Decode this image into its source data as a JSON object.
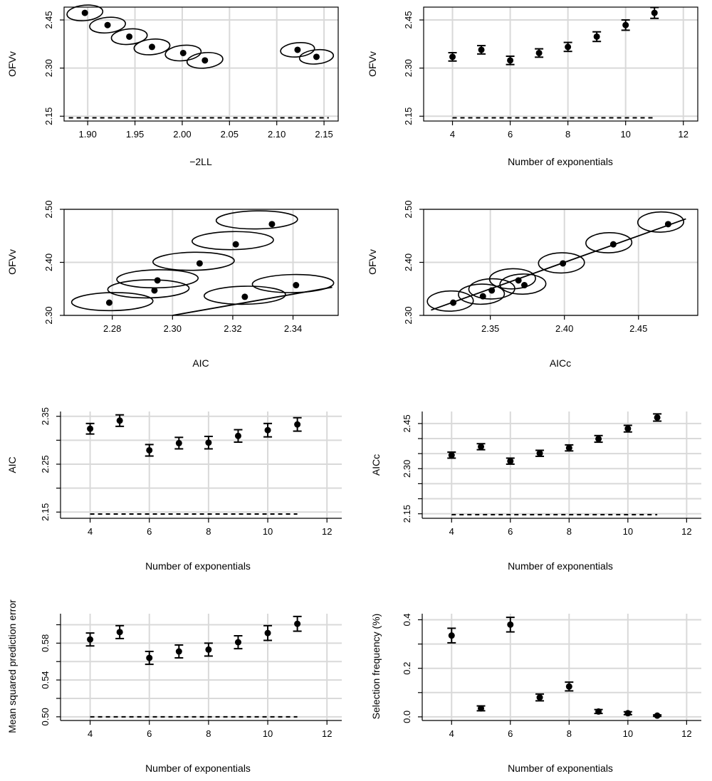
{
  "chart_data": [
    {
      "id": "p1",
      "type": "scatter",
      "title": "",
      "xlabel": "−2LL",
      "ylabel": "OFVv",
      "xlim": [
        1.875,
        2.165
      ],
      "ylim": [
        2.135,
        2.49
      ],
      "xticks": [
        1.9,
        1.95,
        2.0,
        2.05,
        2.1,
        2.15
      ],
      "xtick_labels": [
        "1.90",
        "1.95",
        "2.00",
        "2.05",
        "2.10",
        "2.15"
      ],
      "yticks": [
        2.15,
        2.3,
        2.45
      ],
      "ytick_labels": [
        "2.15",
        "2.30",
        "2.45"
      ],
      "grid": true,
      "points": [
        {
          "x": 1.897,
          "y": 2.472
        },
        {
          "x": 1.921,
          "y": 2.434
        },
        {
          "x": 1.944,
          "y": 2.398
        },
        {
          "x": 1.968,
          "y": 2.366
        },
        {
          "x": 2.001,
          "y": 2.347
        },
        {
          "x": 2.024,
          "y": 2.324
        },
        {
          "x": 2.122,
          "y": 2.357
        },
        {
          "x": 2.142,
          "y": 2.335
        }
      ],
      "ellipses": [
        {
          "x": 1.897,
          "y": 2.472,
          "rx": 0.019,
          "ry": 0.024,
          "angle": 0.25
        },
        {
          "x": 1.921,
          "y": 2.434,
          "rx": 0.019,
          "ry": 0.024,
          "angle": 0.25
        },
        {
          "x": 1.944,
          "y": 2.398,
          "rx": 0.019,
          "ry": 0.024,
          "angle": 0.25
        },
        {
          "x": 1.968,
          "y": 2.366,
          "rx": 0.019,
          "ry": 0.024,
          "angle": 0.25
        },
        {
          "x": 2.001,
          "y": 2.347,
          "rx": 0.019,
          "ry": 0.024,
          "angle": 0.25
        },
        {
          "x": 2.024,
          "y": 2.324,
          "rx": 0.019,
          "ry": 0.024,
          "angle": 0.25
        },
        {
          "x": 2.122,
          "y": 2.357,
          "rx": 0.018,
          "ry": 0.022,
          "angle": 0.25
        },
        {
          "x": 2.142,
          "y": 2.335,
          "rx": 0.018,
          "ry": 0.022,
          "angle": 0.25
        }
      ],
      "dashed_segment": {
        "x": [
          1.88,
          2.155
        ],
        "y": 2.145
      }
    },
    {
      "id": "p2",
      "type": "scatter",
      "title": "",
      "xlabel": "Number of exponentials",
      "ylabel": "OFVv",
      "xlim": [
        3,
        12.5
      ],
      "ylim": [
        2.135,
        2.49
      ],
      "xticks": [
        4,
        6,
        8,
        10,
        12
      ],
      "xtick_labels": [
        "4",
        "6",
        "8",
        "10",
        "12"
      ],
      "yticks": [
        2.15,
        2.3,
        2.45
      ],
      "ytick_labels": [
        "2.15",
        "2.30",
        "2.45"
      ],
      "grid": true,
      "x": [
        4,
        5,
        6,
        7,
        8,
        9,
        10,
        11
      ],
      "y": [
        2.335,
        2.357,
        2.324,
        2.347,
        2.366,
        2.398,
        2.434,
        2.472
      ],
      "err": [
        0.013,
        0.013,
        0.013,
        0.013,
        0.014,
        0.015,
        0.016,
        0.017
      ],
      "dashed_segment": {
        "x": [
          4,
          11
        ],
        "y": 2.145
      }
    },
    {
      "id": "p3",
      "type": "scatter",
      "title": "",
      "xlabel": "AIC",
      "ylabel": "OFVv",
      "xlim": [
        2.264,
        2.355
      ],
      "ylim": [
        2.3,
        2.5
      ],
      "xticks": [
        2.28,
        2.3,
        2.32,
        2.34
      ],
      "xtick_labels": [
        "2.28",
        "2.30",
        "2.32",
        "2.34"
      ],
      "yticks": [
        2.3,
        2.4,
        2.5
      ],
      "ytick_labels": [
        "2.30",
        "2.40",
        "2.50"
      ],
      "grid": true,
      "points": [
        {
          "x": 2.279,
          "y": 2.324
        },
        {
          "x": 2.295,
          "y": 2.366
        },
        {
          "x": 2.294,
          "y": 2.347
        },
        {
          "x": 2.309,
          "y": 2.398
        },
        {
          "x": 2.321,
          "y": 2.434
        },
        {
          "x": 2.333,
          "y": 2.472
        },
        {
          "x": 2.324,
          "y": 2.335
        },
        {
          "x": 2.341,
          "y": 2.357
        }
      ],
      "ellipses": [
        {
          "x": 2.28,
          "y": 2.326,
          "rx": 0.0135,
          "ry": 0.017,
          "angle": 0.08
        },
        {
          "x": 2.295,
          "y": 2.369,
          "rx": 0.0135,
          "ry": 0.017,
          "angle": 0.08
        },
        {
          "x": 2.292,
          "y": 2.35,
          "rx": 0.0135,
          "ry": 0.017,
          "angle": 0.08
        },
        {
          "x": 2.307,
          "y": 2.402,
          "rx": 0.0135,
          "ry": 0.017,
          "angle": 0.08
        },
        {
          "x": 2.32,
          "y": 2.441,
          "rx": 0.0135,
          "ry": 0.017,
          "angle": 0.08
        },
        {
          "x": 2.328,
          "y": 2.48,
          "rx": 0.0135,
          "ry": 0.017,
          "angle": 0.08
        },
        {
          "x": 2.324,
          "y": 2.338,
          "rx": 0.0135,
          "ry": 0.017,
          "angle": 0.08
        },
        {
          "x": 2.34,
          "y": 2.36,
          "rx": 0.0135,
          "ry": 0.017,
          "angle": 0.08
        }
      ],
      "reference_line": {
        "x": [
          2.3,
          2.353
        ],
        "y": [
          2.3,
          2.353
        ]
      }
    },
    {
      "id": "p4",
      "type": "scatter",
      "title": "",
      "xlabel": "AICc",
      "ylabel": "OFVv",
      "xlim": [
        2.305,
        2.49
      ],
      "ylim": [
        2.3,
        2.5
      ],
      "xticks": [
        2.35,
        2.4,
        2.45
      ],
      "xtick_labels": [
        "2.35",
        "2.40",
        "2.45"
      ],
      "yticks": [
        2.3,
        2.4,
        2.5
      ],
      "ytick_labels": [
        "2.30",
        "2.40",
        "2.50"
      ],
      "grid": true,
      "points": [
        {
          "x": 2.325,
          "y": 2.324
        },
        {
          "x": 2.345,
          "y": 2.336
        },
        {
          "x": 2.351,
          "y": 2.347
        },
        {
          "x": 2.369,
          "y": 2.366
        },
        {
          "x": 2.373,
          "y": 2.357
        },
        {
          "x": 2.399,
          "y": 2.398
        },
        {
          "x": 2.433,
          "y": 2.434
        },
        {
          "x": 2.47,
          "y": 2.472
        }
      ],
      "ellipses": [
        {
          "x": 2.323,
          "y": 2.327,
          "rx": 0.0155,
          "ry": 0.019,
          "angle": 0.05
        },
        {
          "x": 2.344,
          "y": 2.34,
          "rx": 0.0155,
          "ry": 0.019,
          "angle": 0.05
        },
        {
          "x": 2.351,
          "y": 2.35,
          "rx": 0.0155,
          "ry": 0.019,
          "angle": 0.05
        },
        {
          "x": 2.365,
          "y": 2.369,
          "rx": 0.0155,
          "ry": 0.019,
          "angle": 0.05
        },
        {
          "x": 2.372,
          "y": 2.359,
          "rx": 0.0155,
          "ry": 0.019,
          "angle": 0.05
        },
        {
          "x": 2.398,
          "y": 2.399,
          "rx": 0.0155,
          "ry": 0.019,
          "angle": 0.05
        },
        {
          "x": 2.43,
          "y": 2.437,
          "rx": 0.0155,
          "ry": 0.019,
          "angle": 0.05
        },
        {
          "x": 2.465,
          "y": 2.476,
          "rx": 0.0155,
          "ry": 0.019,
          "angle": 0.05
        }
      ],
      "reference_line": {
        "x": [
          2.31,
          2.482
        ],
        "y": [
          2.31,
          2.482
        ]
      }
    },
    {
      "id": "p5",
      "type": "scatter",
      "title": "",
      "xlabel": "Number of exponentials",
      "ylabel": "AIC",
      "xlim": [
        3,
        12.5
      ],
      "ylim": [
        2.137,
        2.36
      ],
      "xticks": [
        4,
        6,
        8,
        10,
        12
      ],
      "xtick_labels": [
        "4",
        "6",
        "8",
        "10",
        "12"
      ],
      "yticks": [
        2.15,
        2.25,
        2.35
      ],
      "ytick_labels": [
        "2.15",
        "2.25",
        "2.35"
      ],
      "minor_yticks": [
        2.2,
        2.3
      ],
      "grid": true,
      "x": [
        4,
        5,
        6,
        7,
        8,
        9,
        10,
        11
      ],
      "y": [
        2.324,
        2.341,
        2.279,
        2.294,
        2.295,
        2.309,
        2.321,
        2.333
      ],
      "err": [
        0.011,
        0.012,
        0.012,
        0.012,
        0.013,
        0.013,
        0.014,
        0.014
      ],
      "dashed_segment": {
        "x": [
          4,
          11
        ],
        "y": 2.146
      }
    },
    {
      "id": "p6",
      "type": "scatter",
      "title": "",
      "xlabel": "Number of exponentials",
      "ylabel": "AICc",
      "xlim": [
        3,
        12.5
      ],
      "ylim": [
        2.135,
        2.49
      ],
      "xticks": [
        4,
        6,
        8,
        10,
        12
      ],
      "xtick_labels": [
        "4",
        "6",
        "8",
        "10",
        "12"
      ],
      "yticks": [
        2.15,
        2.3,
        2.45
      ],
      "ytick_labels": [
        "2.15",
        "2.30",
        "2.45"
      ],
      "minor_yticks": [
        2.2,
        2.25,
        2.35,
        2.4
      ],
      "grid": true,
      "x": [
        4,
        5,
        6,
        7,
        8,
        9,
        10,
        11
      ],
      "y": [
        2.345,
        2.373,
        2.325,
        2.351,
        2.369,
        2.399,
        2.433,
        2.47
      ],
      "err": [
        0.01,
        0.01,
        0.01,
        0.01,
        0.01,
        0.011,
        0.011,
        0.012
      ],
      "dashed_segment": {
        "x": [
          4,
          11
        ],
        "y": 2.147
      }
    },
    {
      "id": "p7",
      "type": "scatter",
      "title": "",
      "xlabel": "Number of exponentials",
      "ylabel": "Mean squared prediction error",
      "xlim": [
        3,
        12.5
      ],
      "ylim": [
        0.496,
        0.612
      ],
      "xticks": [
        4,
        6,
        8,
        10,
        12
      ],
      "xtick_labels": [
        "4",
        "6",
        "8",
        "10",
        "12"
      ],
      "yticks": [
        0.5,
        0.54,
        0.58
      ],
      "ytick_labels": [
        "0.50",
        "0.54",
        "0.58"
      ],
      "minor_yticks": [
        0.52,
        0.56,
        0.6
      ],
      "grid": true,
      "x": [
        4,
        5,
        6,
        7,
        8,
        9,
        10,
        11
      ],
      "y": [
        0.584,
        0.592,
        0.564,
        0.571,
        0.573,
        0.581,
        0.591,
        0.601
      ],
      "err": [
        0.007,
        0.007,
        0.007,
        0.007,
        0.007,
        0.007,
        0.008,
        0.008
      ],
      "dashed_segment": {
        "x": [
          4,
          11
        ],
        "y": 0.5
      }
    },
    {
      "id": "p8",
      "type": "scatter",
      "title": "",
      "xlabel": "Number of exponentials",
      "ylabel": "Selection frequency (%)",
      "xlim": [
        3,
        12.5
      ],
      "ylim": [
        -0.015,
        0.425
      ],
      "xticks": [
        4,
        6,
        8,
        10,
        12
      ],
      "xtick_labels": [
        "4",
        "6",
        "8",
        "10",
        "12"
      ],
      "yticks": [
        0.0,
        0.2,
        0.4
      ],
      "ytick_labels": [
        "0.0",
        "0.2",
        "0.4"
      ],
      "minor_yticks": [
        0.1,
        0.3
      ],
      "grid": true,
      "x": [
        4,
        5,
        6,
        7,
        8,
        9,
        10,
        11
      ],
      "y": [
        0.335,
        0.035,
        0.38,
        0.08,
        0.125,
        0.022,
        0.015,
        0.005
      ],
      "err": [
        0.03,
        0.01,
        0.03,
        0.014,
        0.018,
        0.008,
        0.006,
        0.003
      ]
    }
  ]
}
